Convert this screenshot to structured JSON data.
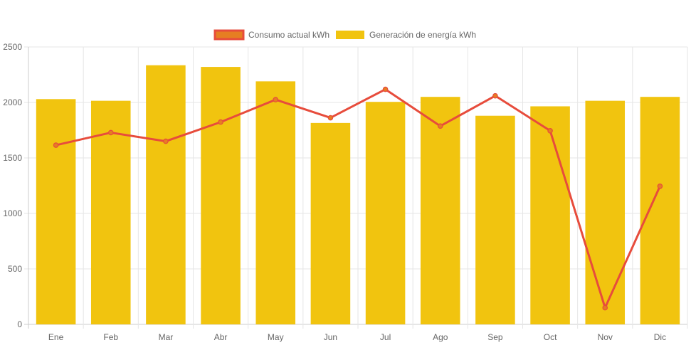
{
  "chart_data": {
    "type": "bar",
    "categories": [
      "Ene",
      "Feb",
      "Mar",
      "Abr",
      "May",
      "Jun",
      "Jul",
      "Ago",
      "Sep",
      "Oct",
      "Nov",
      "Dic"
    ],
    "series": [
      {
        "name": "Consumo actual kWh",
        "type": "line",
        "values": [
          1615,
          1728,
          1650,
          1823,
          2025,
          1862,
          2118,
          1787,
          2060,
          1745,
          150,
          1245
        ],
        "color": "#e74c3c",
        "fill": "#e67e22"
      },
      {
        "name": "Generación de energía kWh",
        "type": "bar",
        "values": [
          2030,
          2015,
          2335,
          2320,
          2190,
          1815,
          2005,
          2050,
          1880,
          1965,
          2015,
          2050
        ],
        "color": "#f1c40f"
      }
    ],
    "y_ticks": [
      "0",
      "500",
      "1000",
      "1500",
      "2000",
      "2500"
    ],
    "ylim": [
      0,
      2500
    ],
    "grid": true,
    "legend_position": "top"
  }
}
